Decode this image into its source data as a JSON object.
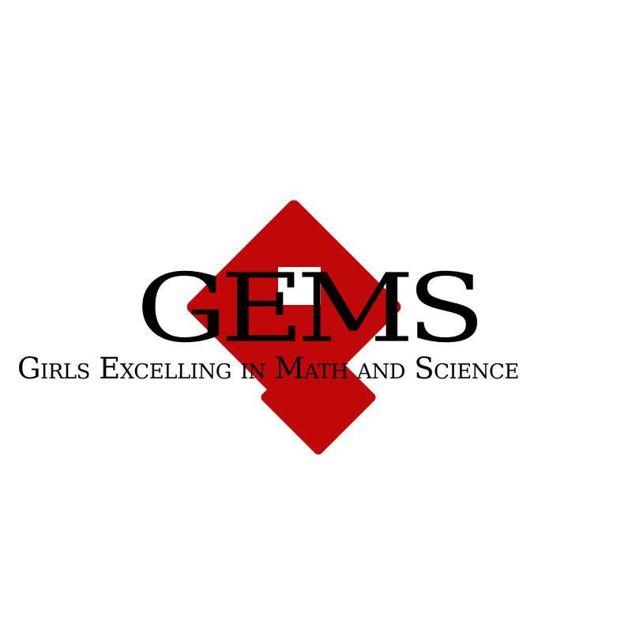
{
  "logo": {
    "title": "GEMS",
    "tagline": "Girls Excelling in Math and Science",
    "colors": {
      "diamond": "#c00808",
      "text": "#000000",
      "background": "#ffffff"
    }
  }
}
